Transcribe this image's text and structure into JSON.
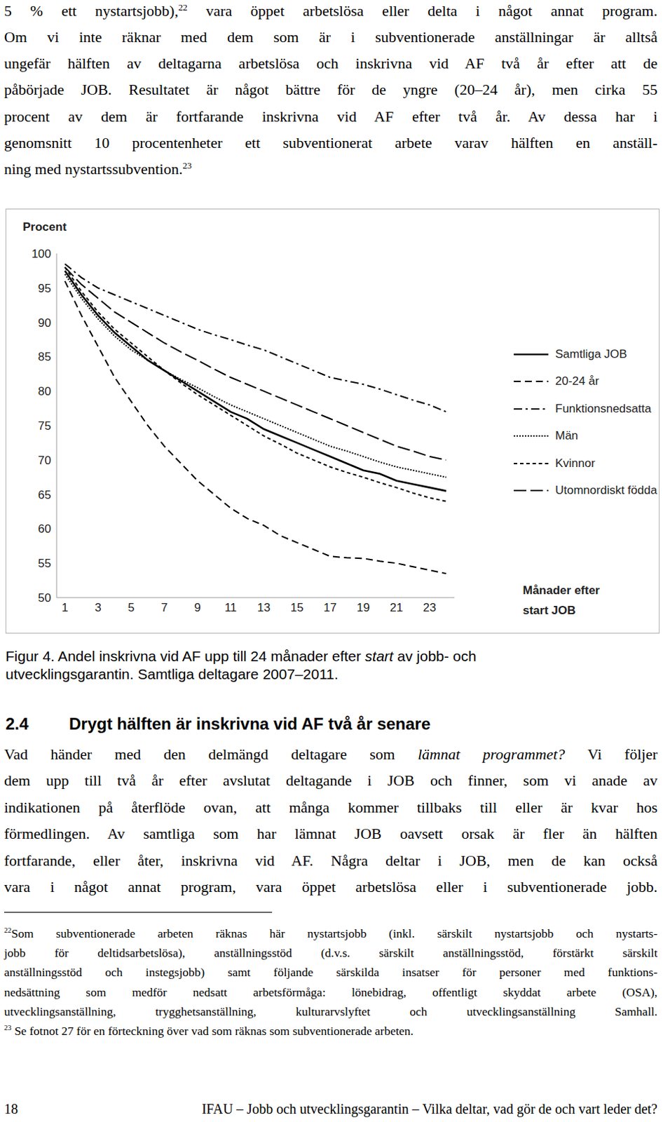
{
  "page": {
    "paragraph_1": [
      [
        "5 % ett nystartsjobb),",
        {
          "sup": "22"
        },
        " vara öppet arbetslösa eller delta i något annat program."
      ],
      "Om vi inte räknar med dem som är i subventionerade anställningar är alltså",
      "ungefär hälften av deltagarna arbetslösa och inskrivna vid AF två år efter att de",
      "påbörjade JOB. Resultatet är något bättre för de yngre (20–24 år), men cirka 55",
      "procent av dem är fortfarande inskrivna vid AF efter två år. Av dessa har i",
      "genomsnitt 10 procentenheter ett subventionerat arbete varav hälften en anställ-",
      [
        "ning med nystartssubvention.",
        {
          "sup": "23"
        }
      ]
    ],
    "caption": [
      [
        "Figur 4. Andel inskrivna vid AF upp till 24 månader efter ",
        {
          "i": "start"
        },
        " av jobb- och"
      ],
      "utvecklingsgarantin. Samtliga deltagare 2007–2011."
    ],
    "heading": {
      "number": "2.4",
      "text": "Drygt hälften är inskrivna vid AF två år senare"
    },
    "paragraph_2": [
      [
        "Vad händer med den delmängd deltagare som ",
        {
          "i": "lämnat programmet?"
        },
        " Vi följer"
      ],
      "dem upp till två år efter avslutat deltagande i JOB och finner, som vi anade av",
      "indikationen på återflöde ovan, att många kommer tillbaks till eller är kvar hos",
      "förmedlingen. Av samtliga som har lämnat JOB oavsett orsak är fler än hälften",
      "fortfarande, eller åter, inskrivna vid AF. Några deltar i JOB, men de kan också",
      "vara i något annat program, vara öppet arbetslösa eller i subventionerade jobb."
    ],
    "footnotes": [
      [
        [
          {
            "sup": "22"
          },
          "Som subventionerade arbeten räknas här nystartsjobb (inkl. särskilt nystartsjobb och nystarts-"
        ],
        "jobb för deltidsarbetslösa), anställningsstöd (d.v.s. särskilt anställningsstöd, förstärkt särskilt",
        "anställningsstöd och instegsjobb) samt följande särskilda insatser för personer med funktions-",
        "nedsättning som medför nedsatt arbetsförmåga: lönebidrag, offentligt skyddat arbete (OSA),",
        "utvecklingsanställning, trygghetsanställning, kulturarvslyftet och utvecklingsanställning Samhall."
      ],
      [
        [
          {
            "sup": "23"
          },
          " Se fotnot 27 för en förteckning över vad som räknas som subventionerade arbeten."
        ]
      ]
    ],
    "footer": {
      "page_number": "18",
      "text": "IFAU – Jobb och utvecklingsgarantin – Vilka deltar, vad gör de och vart leder det?"
    }
  },
  "chart_data": {
    "type": "line",
    "ylabel": "Procent",
    "xlabel": [
      "Månader efter",
      "start JOB"
    ],
    "x": [
      1,
      2,
      3,
      4,
      5,
      6,
      7,
      8,
      9,
      10,
      11,
      12,
      13,
      14,
      15,
      16,
      17,
      18,
      19,
      20,
      21,
      22,
      23,
      24
    ],
    "xlim": [
      0.5,
      24.5
    ],
    "xticks": [
      1,
      3,
      5,
      7,
      9,
      11,
      13,
      15,
      17,
      19,
      21,
      23
    ],
    "ylim": [
      50,
      100
    ],
    "yticks": [
      50,
      55,
      60,
      65,
      70,
      75,
      80,
      85,
      90,
      95,
      100
    ],
    "grid": false,
    "legend": "right",
    "series": [
      {
        "name": "Samtliga JOB",
        "color": "#000000",
        "line_style": "solid",
        "values": [
          97.5,
          94,
          91,
          88.5,
          86.5,
          84.5,
          83,
          81.5,
          80,
          78.5,
          77,
          76,
          74.5,
          73.5,
          72.5,
          71.5,
          70.5,
          69.5,
          68.5,
          68,
          67,
          66.5,
          66,
          65.5
        ]
      },
      {
        "name": "20-24 år",
        "color": "#000000",
        "line_style": "dashed",
        "values": [
          96,
          91,
          86.5,
          82,
          78.5,
          75,
          72,
          69.5,
          67,
          65,
          63,
          61.5,
          60.5,
          59,
          58,
          57,
          56,
          55.8,
          55.7,
          55.3,
          55,
          54.5,
          54,
          53.5
        ]
      },
      {
        "name": "Funktionsnedsatta",
        "color": "#000000",
        "line_style": "dashdot",
        "values": [
          98.5,
          96.5,
          95,
          94,
          93,
          92,
          91,
          90,
          89,
          88.2,
          87.5,
          86.7,
          86,
          85,
          84,
          83,
          82,
          81.5,
          81,
          80.3,
          79.5,
          78.7,
          78,
          77
        ]
      },
      {
        "name": "Män",
        "color": "#000000",
        "line_style": "dotted",
        "values": [
          97,
          93.5,
          90.5,
          88,
          86,
          84.5,
          83,
          81.7,
          80.5,
          79.2,
          78,
          77,
          76,
          75,
          74,
          73,
          72,
          71.3,
          70.5,
          69.7,
          69,
          68.5,
          68,
          67.5
        ]
      },
      {
        "name": "Kvinnor",
        "color": "#000000",
        "line_style": "short_dash",
        "values": [
          98,
          94.5,
          91.5,
          89,
          87,
          85,
          83,
          81.2,
          79.5,
          78,
          76.5,
          75,
          73.5,
          72.3,
          71,
          70,
          69,
          68.2,
          67.5,
          66.7,
          66,
          65.2,
          64.5,
          64
        ]
      },
      {
        "name": "Utomnordiskt födda",
        "color": "#000000",
        "line_style": "long_dash",
        "values": [
          98,
          95.5,
          93.5,
          91.5,
          90,
          88.5,
          87,
          85.7,
          84.5,
          83.2,
          82,
          81,
          80,
          79,
          78,
          77,
          76,
          75,
          74,
          73,
          72,
          71.3,
          70.5,
          70
        ]
      }
    ]
  }
}
